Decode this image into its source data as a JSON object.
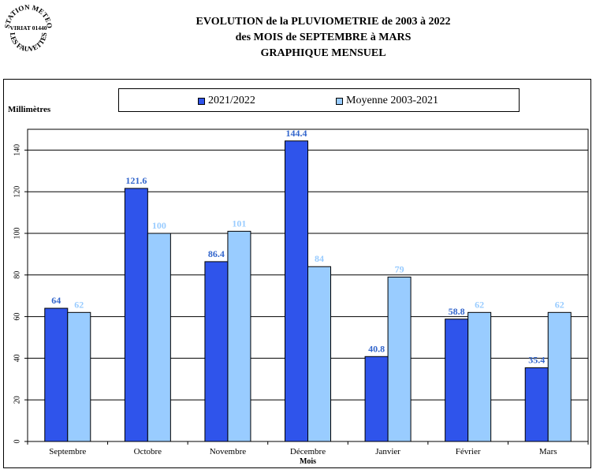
{
  "logo": {
    "line1": "STATION METEO",
    "line2": "VIRIAT 01440",
    "line3": "LES FAUVETTES"
  },
  "header": {
    "line1": "EVOLUTION de la PLUVIOMETRIE de 2003 à 2022",
    "line2": "des MOIS de SEPTEMBRE à MARS",
    "line3": "GRAPHIQUE MENSUEL"
  },
  "colors": {
    "series1": "#2f54eb",
    "series2": "#99ccff",
    "label1": "#3366cc",
    "label2": "#99ccff"
  },
  "chart_data": {
    "type": "bar",
    "title": "",
    "xlabel": "Mois",
    "ylabel": "Millimètres",
    "ylim": [
      0,
      150
    ],
    "yticks": [
      0,
      20,
      40,
      60,
      80,
      100,
      120,
      140
    ],
    "grid": true,
    "legend": "top",
    "categories": [
      "Septembre",
      "Octobre",
      "Novembre",
      "Décembre",
      "Janvier",
      "Février",
      "Mars"
    ],
    "series": [
      {
        "name": "2021/2022",
        "values": [
          64,
          121.6,
          86.4,
          144.4,
          40.8,
          58.8,
          35.4
        ],
        "labels": [
          "64",
          "121.6",
          "86.4",
          "144.4",
          "40.8",
          "58.8",
          "35.4"
        ]
      },
      {
        "name": "Moyenne 2003-2021",
        "values": [
          62,
          100,
          101,
          84,
          79,
          62,
          62
        ],
        "labels": [
          "62",
          "100",
          "101",
          "84",
          "79",
          "62",
          "62"
        ]
      }
    ]
  }
}
